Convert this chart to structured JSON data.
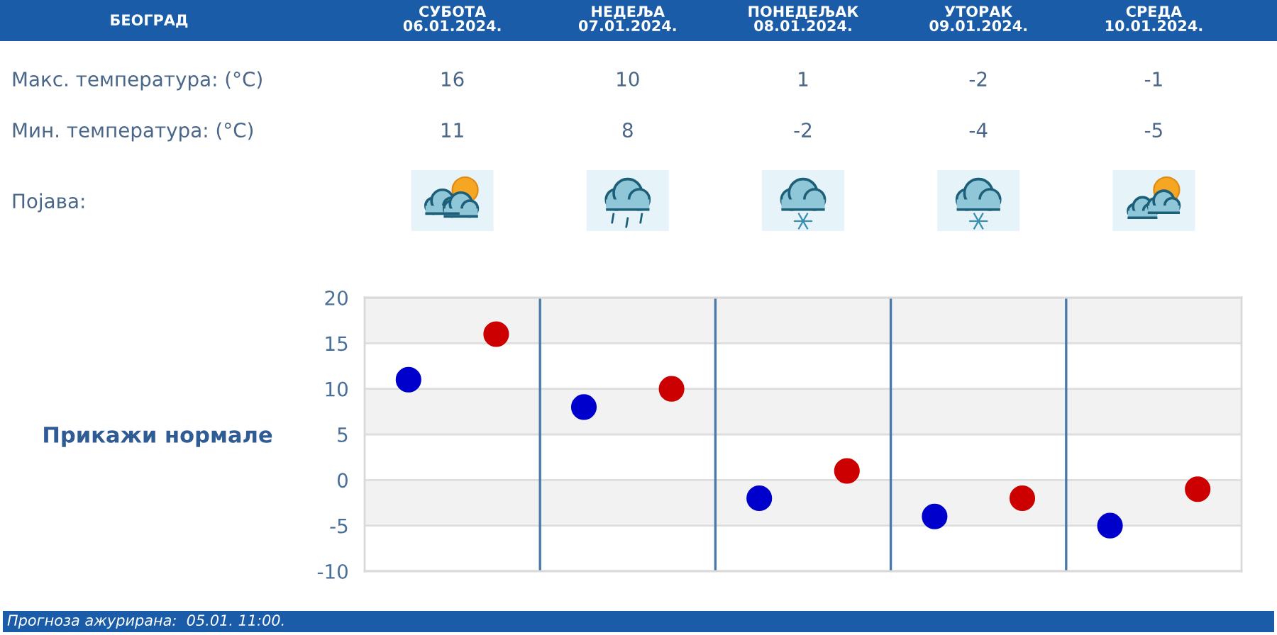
{
  "chart_data": {
    "type": "scatter",
    "title": "БЕОГРАД",
    "categories": [
      null,
      null,
      null,
      null,
      null
    ],
    "series": [
      {
        "color": "#cc0000",
        "values": [
          16,
          10,
          1,
          -2,
          -1
        ]
      },
      {
        "color": "#0000cc",
        "values": [
          11,
          8,
          -2,
          -4,
          -5
        ]
      }
    ],
    "data_labels": true,
    "marker": "circle",
    "grid": true,
    "ylim": [
      -10,
      20
    ],
    "yticks": [
      -10,
      -5,
      0,
      5,
      10,
      15,
      20
    ],
    "bands": [
      {
        "axis": "y",
        "from": 15,
        "to": 20,
        "color": "#f2f2f2"
      },
      {
        "axis": "y",
        "from": 5,
        "to": 10,
        "color": "#f2f2f2"
      },
      {
        "axis": "y",
        "from": -5,
        "to": 0,
        "color": "#f2f2f2"
      }
    ],
    "annotations": [
      "СУБОТА\n06.01.2024.",
      "НЕДЕЉА\n07.01.2024.",
      "ПОНЕДЕЉАК\n08.01.2024.",
      "УТОРАК\n09.01.2024.",
      "СРЕДА\n10.01.2024.",
      "Макс. температура: (°C)",
      "Мин. температура: (°C)",
      "Појава:",
      "Прикажи нормале",
      "Прогноза ажурирана:  05.01. 11:00."
    ]
  }
}
